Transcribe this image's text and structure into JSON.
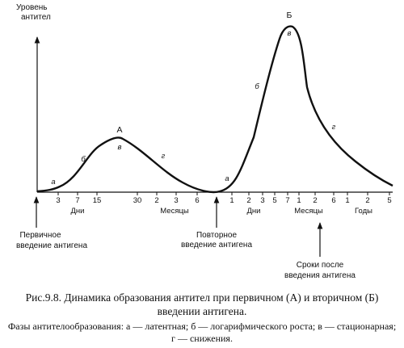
{
  "diagram": {
    "y_axis_title": [
      "Уровень",
      "антител"
    ],
    "peak_labels": [
      "А",
      "Б"
    ],
    "phase_labels": {
      "primary": [
        "а",
        "б",
        "в",
        "г"
      ],
      "secondary": [
        "а",
        "б",
        "в",
        "г"
      ]
    },
    "tick_labels": {
      "primary_days": [
        "3",
        "7",
        "15",
        "30"
      ],
      "primary_months": [
        "2",
        "3",
        "6"
      ],
      "secondary_days": [
        "1",
        "2",
        "3",
        "5"
      ],
      "secondary_months": [
        "7",
        "1",
        "2",
        "6"
      ],
      "secondary_years": [
        "1",
        "2",
        "5"
      ]
    },
    "unit_labels": {
      "primary_days": "Дни",
      "primary_months": "Месяцы",
      "secondary_days": "Дни",
      "secondary_months": "Месяцы",
      "secondary_years": "Годы"
    },
    "annotations": {
      "primary_injection": [
        "Первичное",
        "введение антигена"
      ],
      "repeat_injection": [
        "Повторное",
        "введение антигена"
      ],
      "after_injection": [
        "Сроки после",
        "введения антигена"
      ]
    }
  },
  "caption": {
    "title": "Рис.9.8. Динамика образования антител при первичном (А) и вторичном (Б) введении антигена.",
    "phases": "Фазы антителообразования: а — латентная; б — логарифмического роста; в — стационарная; г — снижения."
  }
}
